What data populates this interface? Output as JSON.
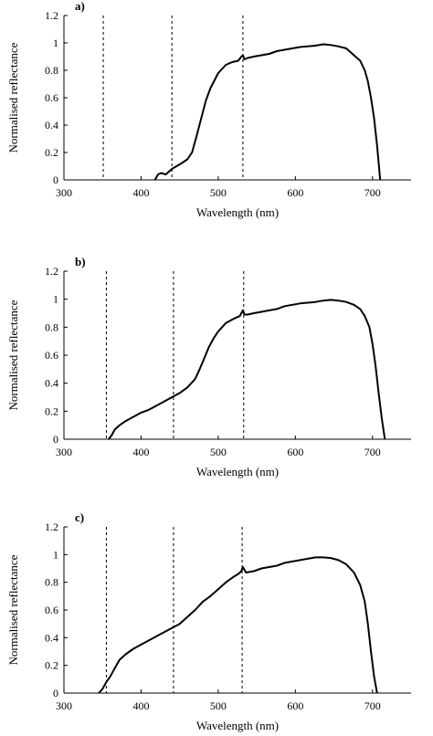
{
  "chart_data": [
    {
      "panel_label": "a)",
      "type": "line",
      "xlabel": "Wavelength (nm)",
      "ylabel": "Normalised reflectance",
      "xlim": [
        300,
        750
      ],
      "ylim": [
        0,
        1.2
      ],
      "xticks": [
        "300",
        "400",
        "500",
        "600",
        "700"
      ],
      "yticks": [
        "0",
        "0.2",
        "0.4",
        "0.6",
        "0.8",
        "1",
        "1.2"
      ],
      "grid": false,
      "legend": "none",
      "vlines": [
        351,
        440,
        532
      ],
      "series": [
        {
          "x": [
            418,
            422,
            426,
            432,
            440,
            446,
            452,
            460,
            466,
            472,
            478,
            484,
            490,
            500,
            510,
            518,
            526,
            530,
            532,
            534,
            538,
            546,
            556,
            566,
            576,
            586,
            596,
            606,
            616,
            626,
            636,
            646,
            656,
            666,
            672,
            678,
            684,
            690,
            694,
            698,
            702,
            706,
            710
          ],
          "y": [
            0.0,
            0.04,
            0.05,
            0.04,
            0.08,
            0.1,
            0.12,
            0.15,
            0.2,
            0.32,
            0.45,
            0.58,
            0.67,
            0.78,
            0.84,
            0.86,
            0.87,
            0.9,
            0.91,
            0.88,
            0.89,
            0.9,
            0.91,
            0.92,
            0.94,
            0.95,
            0.96,
            0.97,
            0.975,
            0.98,
            0.99,
            0.985,
            0.975,
            0.96,
            0.93,
            0.9,
            0.87,
            0.8,
            0.72,
            0.6,
            0.45,
            0.25,
            0.0
          ]
        }
      ]
    },
    {
      "panel_label": "b)",
      "type": "line",
      "xlabel": "Wavelength (nm)",
      "ylabel": "Normalised reflectance",
      "xlim": [
        300,
        750
      ],
      "ylim": [
        0,
        1.2
      ],
      "xticks": [
        "300",
        "400",
        "500",
        "600",
        "700"
      ],
      "yticks": [
        "0",
        "0.2",
        "0.4",
        "0.6",
        "0.8",
        "1",
        "1.2"
      ],
      "grid": false,
      "legend": "none",
      "vlines": [
        355,
        442,
        533
      ],
      "series": [
        {
          "x": [
            358,
            362,
            366,
            372,
            380,
            390,
            400,
            410,
            420,
            430,
            440,
            450,
            460,
            470,
            476,
            482,
            488,
            494,
            500,
            510,
            520,
            528,
            532,
            534,
            538,
            546,
            556,
            566,
            576,
            586,
            596,
            606,
            616,
            626,
            636,
            646,
            656,
            666,
            676,
            684,
            690,
            696,
            700,
            704,
            708,
            712,
            716
          ],
          "y": [
            0.0,
            0.03,
            0.07,
            0.1,
            0.13,
            0.16,
            0.19,
            0.21,
            0.24,
            0.27,
            0.3,
            0.33,
            0.37,
            0.43,
            0.5,
            0.58,
            0.66,
            0.72,
            0.77,
            0.83,
            0.86,
            0.88,
            0.92,
            0.89,
            0.89,
            0.9,
            0.91,
            0.92,
            0.93,
            0.95,
            0.96,
            0.97,
            0.975,
            0.98,
            0.99,
            0.995,
            0.99,
            0.98,
            0.96,
            0.93,
            0.88,
            0.8,
            0.68,
            0.52,
            0.33,
            0.15,
            0.0
          ]
        }
      ]
    },
    {
      "panel_label": "c)",
      "type": "line",
      "xlabel": "Wavelength (nm)",
      "ylabel": "Normalised reflectance",
      "xlim": [
        300,
        750
      ],
      "ylim": [
        0,
        1.2
      ],
      "xticks": [
        "300",
        "400",
        "500",
        "600",
        "700"
      ],
      "yticks": [
        "0",
        "0.2",
        "0.4",
        "0.6",
        "0.8",
        "1",
        "1.2"
      ],
      "grid": false,
      "legend": "none",
      "vlines": [
        355,
        442,
        531
      ],
      "series": [
        {
          "x": [
            345,
            350,
            355,
            360,
            366,
            372,
            380,
            390,
            400,
            410,
            420,
            430,
            440,
            450,
            460,
            470,
            480,
            490,
            500,
            510,
            520,
            526,
            530,
            532,
            536,
            546,
            556,
            566,
            576,
            586,
            596,
            606,
            616,
            626,
            636,
            646,
            656,
            666,
            676,
            684,
            690,
            694,
            698,
            702,
            706
          ],
          "y": [
            0.0,
            0.03,
            0.08,
            0.12,
            0.18,
            0.24,
            0.28,
            0.32,
            0.35,
            0.38,
            0.41,
            0.44,
            0.47,
            0.5,
            0.55,
            0.6,
            0.66,
            0.7,
            0.75,
            0.8,
            0.84,
            0.86,
            0.88,
            0.91,
            0.87,
            0.88,
            0.9,
            0.91,
            0.92,
            0.94,
            0.95,
            0.96,
            0.97,
            0.98,
            0.98,
            0.975,
            0.96,
            0.93,
            0.87,
            0.78,
            0.66,
            0.5,
            0.3,
            0.12,
            0.0
          ]
        }
      ]
    }
  ]
}
